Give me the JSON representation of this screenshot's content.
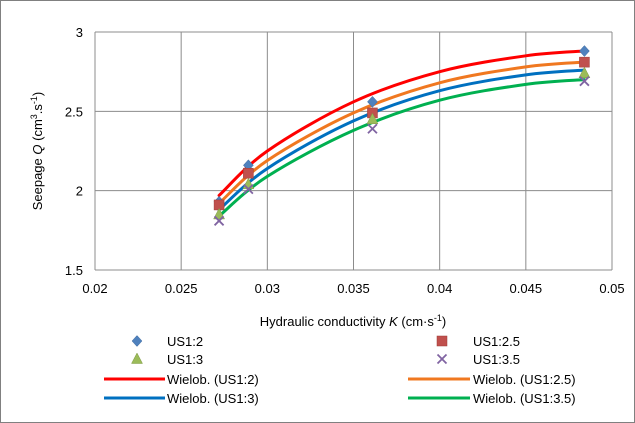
{
  "chart_data": {
    "type": "scatter",
    "xlabel_parts": {
      "prefix": "Hydraulic conductivity ",
      "var": "K",
      "unit": " (cm·s",
      "exp": "-1",
      "close": ")"
    },
    "ylabel_parts": {
      "prefix": "Seepage ",
      "var": "Q",
      "unit": " (cm",
      "sup1": "3",
      "mid": ".s",
      "sup2": "-1",
      "close": ")"
    },
    "xlim": [
      0.02,
      0.05
    ],
    "ylim": [
      1.5,
      3
    ],
    "x_ticks": [
      "0.02",
      "0.025",
      "0.03",
      "0.035",
      "0.04",
      "0.045",
      "0.05"
    ],
    "y_ticks": [
      "1.5",
      "2",
      "2.5",
      "3"
    ],
    "grid": true,
    "x": [
      0.0272,
      0.0289,
      0.0361,
      0.0484
    ],
    "series": [
      {
        "name": "US1:2",
        "marker": "diamond",
        "color": "#4f81bd",
        "values": [
          1.93,
          2.16,
          2.56,
          2.88
        ]
      },
      {
        "name": "US1:2.5",
        "marker": "square",
        "color": "#c0504d",
        "values": [
          1.91,
          2.11,
          2.49,
          2.81
        ]
      },
      {
        "name": "US1:3",
        "marker": "triangle",
        "color": "#9bbb59",
        "values": [
          1.85,
          2.04,
          2.45,
          2.74
        ]
      },
      {
        "name": "US1:3.5",
        "marker": "x",
        "color": "#8064a2",
        "values": [
          1.81,
          2.01,
          2.39,
          2.69
        ]
      }
    ],
    "trendlines": [
      {
        "name": "Wielob. (US1:2)",
        "color": "#ff0000",
        "x_range": [
          0.0272,
          0.0484
        ],
        "points": [
          [
            0.0272,
            1.97
          ],
          [
            0.03,
            2.25
          ],
          [
            0.035,
            2.56
          ],
          [
            0.04,
            2.75
          ],
          [
            0.045,
            2.85
          ],
          [
            0.0484,
            2.88
          ]
        ]
      },
      {
        "name": "Wielob. (US1:2.5)",
        "color": "#f07820",
        "x_range": [
          0.0272,
          0.0484
        ],
        "points": [
          [
            0.0272,
            1.92
          ],
          [
            0.03,
            2.19
          ],
          [
            0.035,
            2.49
          ],
          [
            0.04,
            2.68
          ],
          [
            0.045,
            2.78
          ],
          [
            0.0484,
            2.81
          ]
        ]
      },
      {
        "name": "Wielob. (US1:3)",
        "color": "#0070c0",
        "x_range": [
          0.0272,
          0.0484
        ],
        "points": [
          [
            0.0272,
            1.88
          ],
          [
            0.03,
            2.14
          ],
          [
            0.035,
            2.44
          ],
          [
            0.04,
            2.63
          ],
          [
            0.045,
            2.73
          ],
          [
            0.0484,
            2.76
          ]
        ]
      },
      {
        "name": "Wielob. (US1:3.5)",
        "color": "#00b050",
        "x_range": [
          0.0272,
          0.0484
        ],
        "points": [
          [
            0.0272,
            1.84
          ],
          [
            0.03,
            2.09
          ],
          [
            0.035,
            2.38
          ],
          [
            0.04,
            2.57
          ],
          [
            0.045,
            2.67
          ],
          [
            0.0484,
            2.7
          ]
        ]
      }
    ],
    "legend_position": "bottom"
  }
}
